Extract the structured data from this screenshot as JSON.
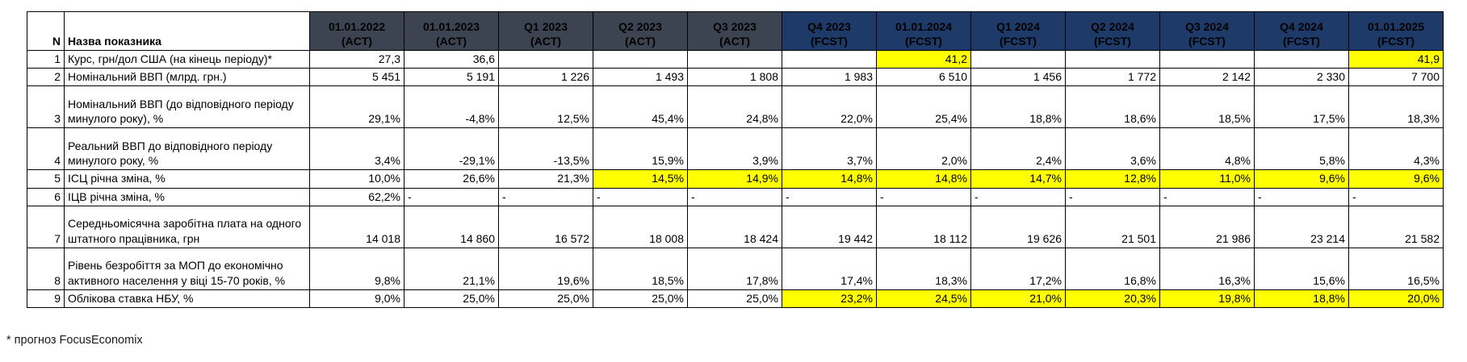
{
  "colors": {
    "act_header": "#3c4452",
    "fcst_header": "#1e3a68",
    "highlight": "#ffff00",
    "grid_line": "#000000"
  },
  "footnote": "* прогноз FocusEconomix",
  "table": {
    "corner": {
      "n": "N",
      "name": "Назва показника"
    },
    "columns": [
      {
        "line1": "01.01.2022",
        "line2": "(ACT)",
        "phase": "act"
      },
      {
        "line1": "01.01.2023",
        "line2": "(ACT)",
        "phase": "act"
      },
      {
        "line1": "Q1 2023",
        "line2": "(ACT)",
        "phase": "act"
      },
      {
        "line1": "Q2 2023",
        "line2": "(ACT)",
        "phase": "act"
      },
      {
        "line1": "Q3 2023",
        "line2": "(ACT)",
        "phase": "act"
      },
      {
        "line1": "Q4 2023",
        "line2": "(FCST)",
        "phase": "fcst"
      },
      {
        "line1": "01.01.2024",
        "line2": "(FCST)",
        "phase": "fcst"
      },
      {
        "line1": "Q1 2024",
        "line2": "(FCST)",
        "phase": "fcst"
      },
      {
        "line1": "Q2 2024",
        "line2": "(FCST)",
        "phase": "fcst"
      },
      {
        "line1": "Q3 2024",
        "line2": "(FCST)",
        "phase": "fcst"
      },
      {
        "line1": "Q4 2024",
        "line2": "(FCST)",
        "phase": "fcst"
      },
      {
        "line1": "01.01.2025",
        "line2": "(FCST)",
        "phase": "fcst"
      }
    ],
    "rows": [
      {
        "n": "1",
        "label": "Курс, грн/дол США (на кінець періоду)*",
        "tall": false,
        "cells": [
          {
            "v": "27,3"
          },
          {
            "v": "36,6"
          },
          {
            "v": ""
          },
          {
            "v": ""
          },
          {
            "v": ""
          },
          {
            "v": ""
          },
          {
            "v": "41,2",
            "hl": true
          },
          {
            "v": ""
          },
          {
            "v": ""
          },
          {
            "v": ""
          },
          {
            "v": ""
          },
          {
            "v": "41,9",
            "hl": true
          }
        ]
      },
      {
        "n": "2",
        "label": "Номінальний ВВП (млрд. грн.)",
        "tall": false,
        "cells": [
          {
            "v": "5 451"
          },
          {
            "v": "5 191"
          },
          {
            "v": "1 226"
          },
          {
            "v": "1 493"
          },
          {
            "v": "1 808"
          },
          {
            "v": "1 983"
          },
          {
            "v": "6 510"
          },
          {
            "v": "1 456"
          },
          {
            "v": "1 772"
          },
          {
            "v": "2 142"
          },
          {
            "v": "2 330"
          },
          {
            "v": "7 700"
          }
        ]
      },
      {
        "n": "3",
        "label": "Номінальний ВВП (до відповідного періоду минулого року), %",
        "tall": true,
        "cells": [
          {
            "v": "29,1%"
          },
          {
            "v": "-4,8%"
          },
          {
            "v": "12,5%"
          },
          {
            "v": "45,4%"
          },
          {
            "v": "24,8%"
          },
          {
            "v": "22,0%"
          },
          {
            "v": "25,4%"
          },
          {
            "v": "18,8%"
          },
          {
            "v": "18,6%"
          },
          {
            "v": "18,5%"
          },
          {
            "v": "17,5%"
          },
          {
            "v": "18,3%"
          }
        ]
      },
      {
        "n": "4",
        "label": "Реальний ВВП до відповідного періоду минулого року, %",
        "tall": true,
        "cells": [
          {
            "v": "3,4%"
          },
          {
            "v": "-29,1%"
          },
          {
            "v": "-13,5%"
          },
          {
            "v": "15,9%"
          },
          {
            "v": "3,9%"
          },
          {
            "v": "3,7%"
          },
          {
            "v": "2,0%"
          },
          {
            "v": "2,4%"
          },
          {
            "v": "3,6%"
          },
          {
            "v": "4,8%"
          },
          {
            "v": "5,8%"
          },
          {
            "v": "4,3%"
          }
        ]
      },
      {
        "n": "5",
        "label": "ІСЦ річна зміна, %",
        "tall": false,
        "cells": [
          {
            "v": "10,0%"
          },
          {
            "v": "26,6%"
          },
          {
            "v": "21,3%"
          },
          {
            "v": "14,5%",
            "hl": true
          },
          {
            "v": "14,9%",
            "hl": true
          },
          {
            "v": "14,8%",
            "hl": true
          },
          {
            "v": "14,8%",
            "hl": true
          },
          {
            "v": "14,7%",
            "hl": true
          },
          {
            "v": "12,8%",
            "hl": true
          },
          {
            "v": "11,0%",
            "hl": true
          },
          {
            "v": "9,6%",
            "hl": true
          },
          {
            "v": "9,6%",
            "hl": true
          }
        ]
      },
      {
        "n": "6",
        "label": "ІЦВ річна зміна, %",
        "tall": false,
        "cells": [
          {
            "v": "62,2%"
          },
          {
            "v": "-",
            "align": "left"
          },
          {
            "v": "-",
            "align": "left"
          },
          {
            "v": "-",
            "align": "left"
          },
          {
            "v": "-",
            "align": "left"
          },
          {
            "v": "-",
            "align": "left"
          },
          {
            "v": "-",
            "align": "left"
          },
          {
            "v": "-",
            "align": "left"
          },
          {
            "v": "-",
            "align": "left"
          },
          {
            "v": "-",
            "align": "left"
          },
          {
            "v": "-",
            "align": "left"
          },
          {
            "v": "-",
            "align": "left"
          }
        ]
      },
      {
        "n": "7",
        "label": "Середньомісячна заробітна плата на одного штатного працівника, грн",
        "tall": true,
        "cells": [
          {
            "v": "14 018"
          },
          {
            "v": "14 860"
          },
          {
            "v": "16 572"
          },
          {
            "v": "18 008"
          },
          {
            "v": "18 424"
          },
          {
            "v": "19 442"
          },
          {
            "v": "18 112"
          },
          {
            "v": "19 626"
          },
          {
            "v": "21 501"
          },
          {
            "v": "21 986"
          },
          {
            "v": "23 214"
          },
          {
            "v": "21 582"
          }
        ]
      },
      {
        "n": "8",
        "label": "Рівень безробіття за МОП до економічно активного населення у віці 15-70 років, %",
        "tall": true,
        "cells": [
          {
            "v": "9,8%"
          },
          {
            "v": "21,1%"
          },
          {
            "v": "19,6%"
          },
          {
            "v": "18,5%"
          },
          {
            "v": "17,8%"
          },
          {
            "v": "17,4%"
          },
          {
            "v": "18,3%"
          },
          {
            "v": "17,2%"
          },
          {
            "v": "16,8%"
          },
          {
            "v": "16,3%"
          },
          {
            "v": "15,6%"
          },
          {
            "v": "16,5%"
          }
        ]
      },
      {
        "n": "9",
        "label": "Облікова ставка НБУ, %",
        "tall": false,
        "cells": [
          {
            "v": "9,0%"
          },
          {
            "v": "25,0%"
          },
          {
            "v": "25,0%"
          },
          {
            "v": "25,0%"
          },
          {
            "v": "25,0%"
          },
          {
            "v": "23,2%",
            "hl": true
          },
          {
            "v": "24,5%",
            "hl": true
          },
          {
            "v": "21,0%",
            "hl": true
          },
          {
            "v": "20,3%",
            "hl": true
          },
          {
            "v": "19,8%",
            "hl": true
          },
          {
            "v": "18,8%",
            "hl": true
          },
          {
            "v": "20,0%",
            "hl": true
          }
        ]
      }
    ]
  }
}
